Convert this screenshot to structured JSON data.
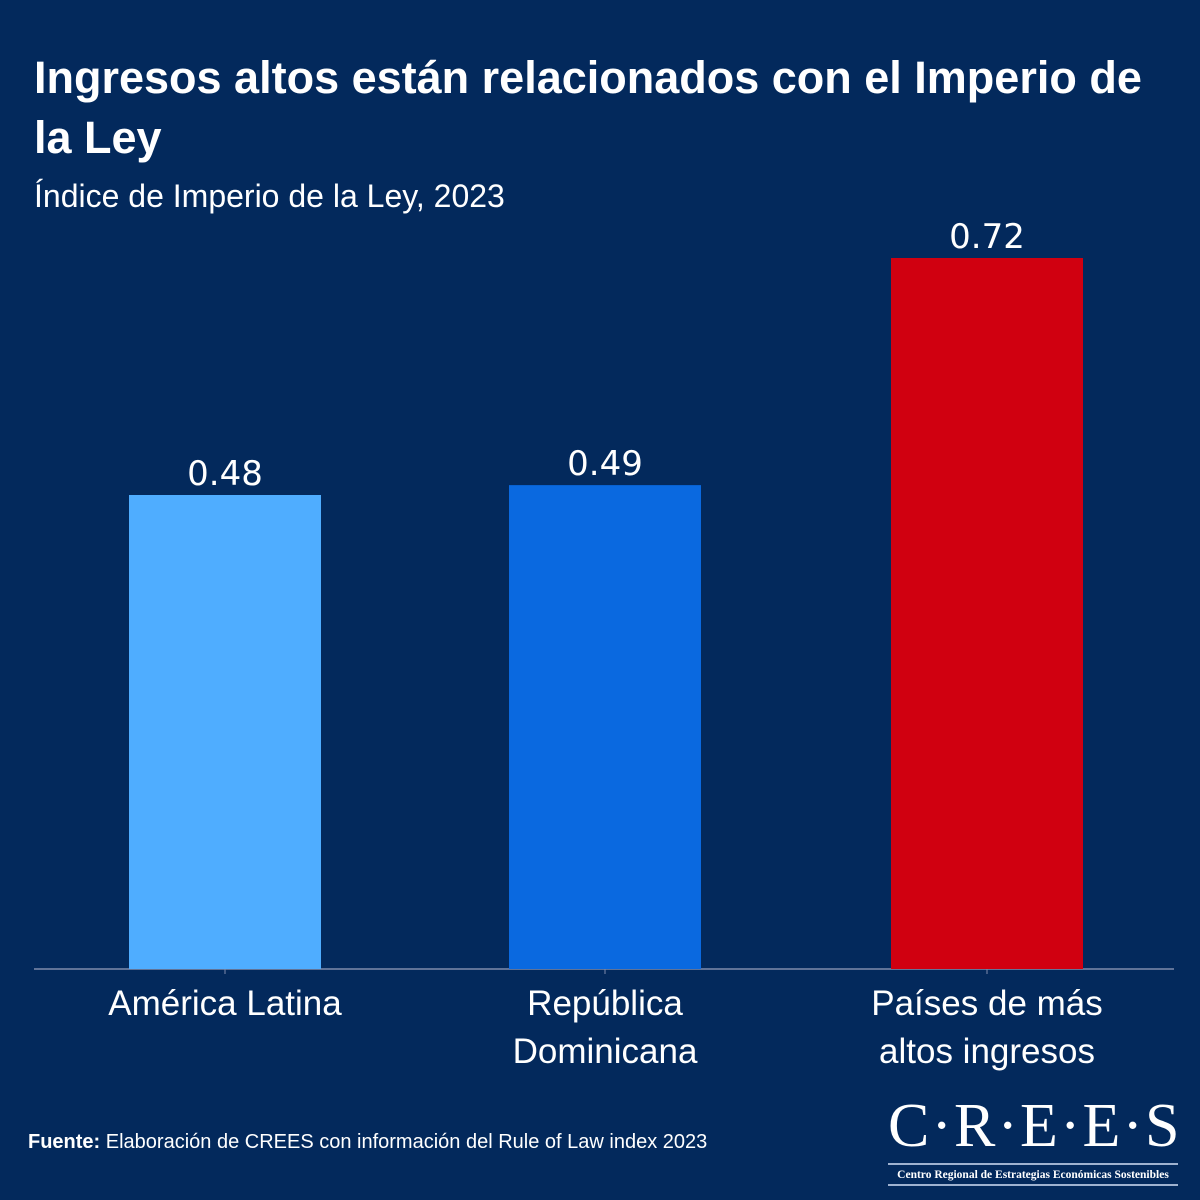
{
  "chart_data": {
    "type": "bar",
    "title": "Ingresos altos están relacionados con el Imperio de la Ley",
    "subtitle": "Índice de Imperio de la Ley, 2023",
    "categories": [
      "América Latina",
      "República Dominicana",
      "Países de más altos ingresos"
    ],
    "category_lines": [
      [
        "América Latina"
      ],
      [
        "República",
        "Dominicana"
      ],
      [
        "Países de más",
        "altos ingresos"
      ]
    ],
    "values": [
      0.48,
      0.49,
      0.72
    ],
    "value_labels": [
      "0.48",
      "0.49",
      "0.72"
    ],
    "colors": [
      "#4fadff",
      "#0a69e0",
      "#d00010"
    ],
    "xlabel": "",
    "ylabel": "",
    "ylim": [
      0,
      0.72
    ],
    "grid": false
  },
  "footer": {
    "label": "Fuente:",
    "text": " Elaboración de CREES con información del Rule of Law index 2023"
  },
  "logo": {
    "name": "C·R·E·E·S",
    "tagline": "Centro Regional de Estrategias Económicas Sostenibles"
  }
}
